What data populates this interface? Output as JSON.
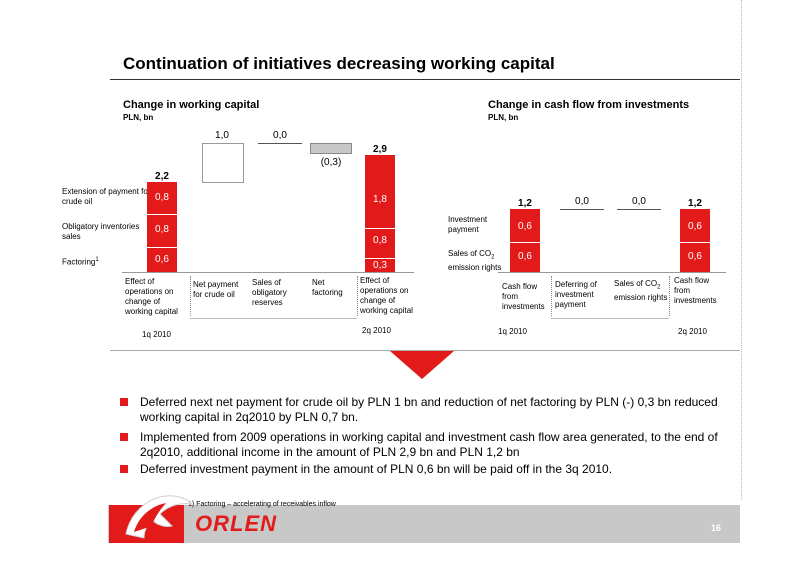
{
  "title": "Continuation of initiatives decreasing working capital",
  "left": {
    "subtitle": "Change in working capital",
    "unit": "PLN, bn",
    "row_labels": [
      "Extension of payment for crude oil",
      "Obligatory inventories sales",
      "Factoring"
    ],
    "factoring_sup": "1",
    "first_bar": {
      "total": "2,2",
      "segments": [
        "0,8",
        "0,8",
        "0,6"
      ]
    },
    "steps": [
      {
        "label": "1,0",
        "category": "Net payment for crude oil"
      },
      {
        "label": "0,0",
        "category": "Sales of obligatory reserves"
      },
      {
        "label": "(0,3)",
        "category": "Net factoring"
      }
    ],
    "last_bar": {
      "total": "2,9",
      "segments": [
        "1,8",
        "0,8",
        "0,3"
      ]
    },
    "first_category": "Effect of operations on change of working capital",
    "last_category": "Effect of operations on change of working capital",
    "periods": [
      "1q 2010",
      "2q 2010"
    ]
  },
  "right": {
    "subtitle": "Change in cash flow from investments",
    "unit": "PLN, bn",
    "row_labels": [
      "Investment payment",
      "Sales of CO",
      "emission rights"
    ],
    "co2_sub": "2",
    "first_bar": {
      "total": "1,2",
      "segments": [
        "0,6",
        "0,6"
      ]
    },
    "steps": [
      {
        "label": "0,0",
        "category": "Deferring of investment payment"
      },
      {
        "label": "0,0",
        "category": "Sales of CO",
        "category_sub": "2",
        "category_rest": "emission rights"
      }
    ],
    "last_bar": {
      "total": "1,2",
      "segments": [
        "0,6",
        "0,6"
      ]
    },
    "first_category": "Cash flow from investments",
    "last_category": "Cash flow from investments",
    "periods": [
      "1q 2010",
      "2q 2010"
    ]
  },
  "bullets": [
    "Deferred next net payment for crude oil by PLN 1 bn and reduction of net factoring by PLN (-) 0,3 bn reduced working capital in 2q2010 by PLN 0,7 bn.",
    "Implemented from 2009 operations in working capital and investment cash flow area generated, to the end of 2q2010, additional income in the amount of PLN 2,9 bn and PLN 1,2 bn",
    "Deferred investment payment in the amount of PLN 0,6 bn will be paid off in the 3q 2010."
  ],
  "footnote": "1) Factoring – accelerating of  receivables inflow",
  "logo_text": "ORLEN",
  "page_number": "16",
  "colors": {
    "accent": "#e21a1a",
    "footer": "#c8c8c8"
  }
}
